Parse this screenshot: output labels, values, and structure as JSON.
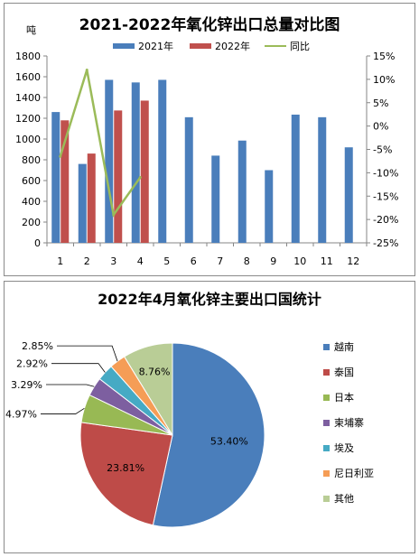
{
  "chart_data": [
    {
      "type": "bar+line",
      "title": "2021-2022年氧化锌出口总量对比图",
      "ylabel_left": "吨",
      "categories": [
        "1",
        "2",
        "3",
        "4",
        "5",
        "6",
        "7",
        "8",
        "9",
        "10",
        "11",
        "12"
      ],
      "ylim_left": [
        0,
        1800
      ],
      "yticks_left": [
        "0",
        "200",
        "400",
        "600",
        "800",
        "1000",
        "1200",
        "1400",
        "1600",
        "1800"
      ],
      "ylim_right": [
        -25,
        15
      ],
      "yticks_right": [
        "-25%",
        "-20%",
        "-15%",
        "-10%",
        "-5%",
        "0%",
        "5%",
        "10%",
        "15%"
      ],
      "legend_position": "top",
      "series": [
        {
          "name": "2021年",
          "kind": "bar",
          "color": "#4a7ebb",
          "values": [
            1260,
            760,
            1570,
            1545,
            1570,
            1210,
            840,
            985,
            700,
            1235,
            1210,
            920
          ]
        },
        {
          "name": "2022年",
          "kind": "bar",
          "color": "#c0504d",
          "values": [
            1180,
            860,
            1275,
            1370,
            null,
            null,
            null,
            null,
            null,
            null,
            null,
            null
          ]
        },
        {
          "name": "同比",
          "kind": "line",
          "axis": "right",
          "color": "#9bbb59",
          "values": [
            -6.5,
            12,
            -19,
            -11,
            null,
            null,
            null,
            null,
            null,
            null,
            null,
            null
          ]
        }
      ]
    },
    {
      "type": "pie",
      "title": "2022年4月氧化锌主要出口国统计",
      "legend_position": "right",
      "slices": [
        {
          "name": "越南",
          "value": 53.4,
          "label": "53.40%",
          "color": "#4a7ebb"
        },
        {
          "name": "泰国",
          "value": 23.81,
          "label": "23.81%",
          "color": "#be4b48"
        },
        {
          "name": "日本",
          "value": 4.97,
          "label": "4.97%",
          "color": "#98b954"
        },
        {
          "name": "柬埔寨",
          "value": 3.29,
          "label": "3.29%",
          "color": "#7d5fa0"
        },
        {
          "name": "埃及",
          "value": 2.92,
          "label": "2.92%",
          "color": "#46aac4"
        },
        {
          "name": "尼日利亚",
          "value": 2.85,
          "label": "2.85%",
          "color": "#f59d56"
        },
        {
          "name": "其他",
          "value": 8.76,
          "label": "8.76%",
          "color": "#b9cd96"
        }
      ]
    }
  ]
}
